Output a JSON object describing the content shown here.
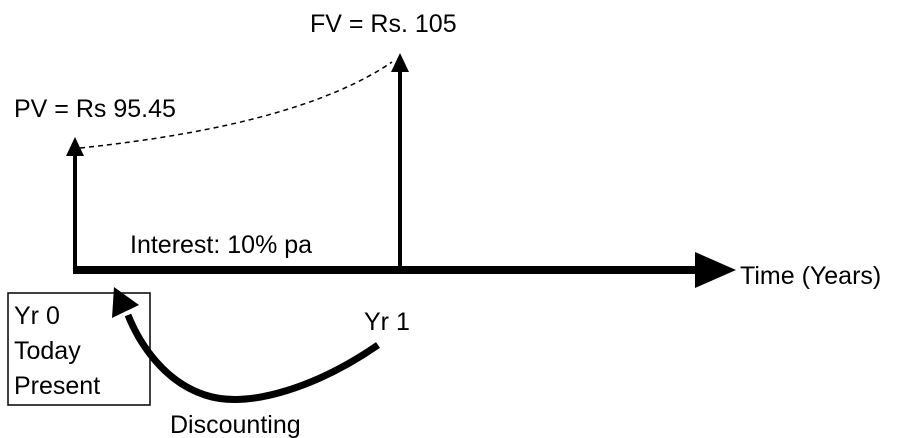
{
  "labels": {
    "pv": "PV = Rs 95.45",
    "fv": "FV = Rs. 105",
    "interest": "Interest: 10% pa",
    "axis": "Time (Years)",
    "year0": [
      "Yr 0",
      "Today",
      "Present"
    ],
    "year1": "Yr 1",
    "process": "Discounting"
  }
}
